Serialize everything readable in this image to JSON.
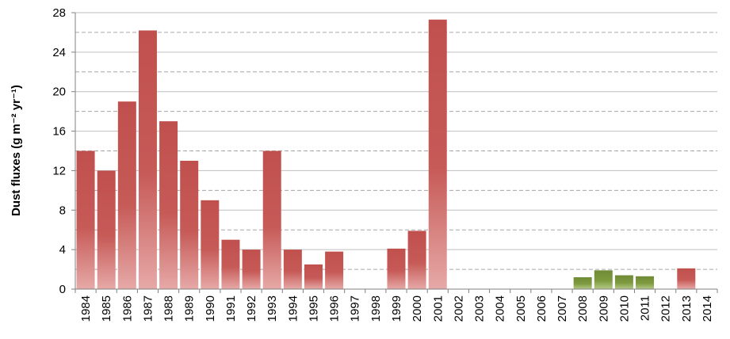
{
  "chart_data": {
    "type": "bar",
    "title": "",
    "xlabel": "",
    "ylabel": "Dust fluxes (g m⁻² yr⁻¹)",
    "ylim": [
      0,
      28
    ],
    "yticks": [
      0,
      4,
      8,
      12,
      16,
      20,
      24,
      28
    ],
    "grid": "horizontal dashed",
    "categories": [
      "1984",
      "1985",
      "1986",
      "1987",
      "1988",
      "1989",
      "1990",
      "1991",
      "1992",
      "1993",
      "1994",
      "1995",
      "1996",
      "1997",
      "1998",
      "1999",
      "2000",
      "2001",
      "2002",
      "2003",
      "2004",
      "2005",
      "2006",
      "2007",
      "2008",
      "2009",
      "2010",
      "2011",
      "2012",
      "2013",
      "2014"
    ],
    "values": [
      14,
      12,
      19,
      26.2,
      17,
      13,
      9,
      5,
      4,
      14,
      4,
      2.5,
      3.8,
      null,
      null,
      4.1,
      5.9,
      27.3,
      null,
      null,
      null,
      null,
      null,
      null,
      1.2,
      1.9,
      1.4,
      1.3,
      null,
      2.1,
      null
    ],
    "bar_colors": [
      "red",
      "red",
      "red",
      "red",
      "red",
      "red",
      "red",
      "red",
      "red",
      "red",
      "red",
      "red",
      "red",
      null,
      null,
      "red",
      "red",
      "red",
      null,
      null,
      null,
      null,
      null,
      null,
      "green",
      "green",
      "green",
      "green",
      null,
      "red",
      null
    ],
    "colors": {
      "red": "#c0504d",
      "green": "#77933c",
      "grid": "#a6a6a6",
      "axis": "#808080"
    }
  }
}
